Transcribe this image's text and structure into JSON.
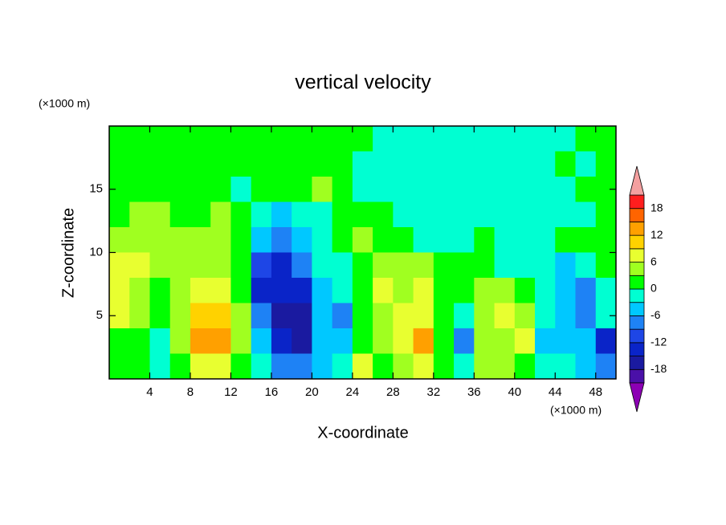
{
  "chart_data": {
    "type": "contour",
    "title": "vertical velocity",
    "xlabel": "X-coordinate",
    "ylabel": "Z-coordinate",
    "x_units": "(×1000 m)",
    "y_units": "(×1000 m)",
    "xlim": [
      0,
      50
    ],
    "ylim": [
      0,
      20
    ],
    "xticks": [
      4,
      8,
      12,
      16,
      20,
      24,
      28,
      32,
      36,
      40,
      44,
      48
    ],
    "yticks": [
      5,
      10,
      15
    ],
    "x": [
      1,
      3,
      5,
      7,
      9,
      11,
      13,
      15,
      17,
      19,
      21,
      23,
      25,
      27,
      29,
      31,
      33,
      35,
      37,
      39,
      41,
      43,
      45,
      47,
      49
    ],
    "z": [
      19,
      17,
      15,
      13,
      11,
      9,
      7,
      5,
      3,
      1
    ],
    "values": [
      [
        1,
        1,
        1,
        1,
        1,
        1,
        1,
        1,
        1,
        1,
        1,
        1,
        1,
        -1,
        -2,
        -1,
        -2,
        -2,
        -2,
        -1,
        -2,
        -1,
        -2,
        1,
        1
      ],
      [
        1,
        1,
        1,
        1,
        1,
        1,
        1,
        1,
        1,
        1,
        1,
        1,
        -1,
        -2,
        -1,
        -2,
        -2,
        -2,
        -2,
        -2,
        -2,
        -1,
        1,
        -1,
        1
      ],
      [
        1,
        1,
        2,
        1,
        1,
        1,
        -1,
        1,
        1,
        1,
        4,
        1,
        -1,
        -2,
        -1,
        -2,
        -2,
        -1,
        -2,
        -2,
        -2,
        -2,
        -1,
        1,
        1
      ],
      [
        2,
        3,
        3,
        2,
        2,
        4,
        2,
        -2,
        -4,
        -3,
        -2,
        1,
        2,
        2,
        -1,
        -2,
        -1,
        -2,
        -1,
        -2,
        -1,
        -2,
        -1,
        -1,
        1
      ],
      [
        5,
        4,
        4,
        4,
        3,
        3,
        2,
        -6,
        -9,
        -4,
        -2,
        2,
        3,
        2,
        1,
        -1,
        -2,
        -1,
        1,
        -1,
        -2,
        -1,
        1,
        1,
        1
      ],
      [
        7,
        7,
        5,
        4,
        4,
        3,
        1,
        -12,
        -13,
        -9,
        -3,
        -1,
        1,
        4,
        3,
        3,
        1,
        1,
        1,
        -1,
        -2,
        -2,
        -4,
        -2,
        1
      ],
      [
        7,
        5,
        2,
        5,
        8,
        6,
        1,
        -13,
        -14,
        -14,
        -5,
        -3,
        2,
        6,
        5,
        6,
        2,
        1,
        5,
        5,
        1,
        -3,
        -6,
        -8,
        -2
      ],
      [
        6,
        4,
        1,
        3,
        11,
        9,
        3,
        -9,
        -16,
        -17,
        -6,
        -9,
        1,
        5,
        8,
        8,
        0,
        -2,
        4,
        6,
        3,
        -3,
        -5,
        -8,
        -3
      ],
      [
        2,
        1,
        -1,
        3,
        14,
        12,
        4,
        -5,
        -14,
        -18,
        -5,
        -6,
        2,
        3,
        8,
        12,
        0,
        -8,
        5,
        5,
        8,
        -4,
        -4,
        -6,
        -14
      ],
      [
        1,
        1,
        -1,
        2,
        8,
        6,
        2,
        -2,
        -9,
        -9,
        -4,
        -3,
        6,
        2,
        3,
        6,
        1,
        -3,
        4,
        4,
        2,
        -3,
        -2,
        -4,
        -9
      ]
    ],
    "colorbar": {
      "levels": [
        -21,
        -18,
        -15,
        -12,
        -9,
        -6,
        -3,
        0,
        3,
        6,
        9,
        12,
        15,
        18,
        21
      ],
      "colors": [
        "#8c00b4",
        "#4a10a8",
        "#1a1aa0",
        "#0a24c8",
        "#1e46e6",
        "#1e82f5",
        "#00c8ff",
        "#00ffd2",
        "#00ff00",
        "#a0ff20",
        "#e8ff30",
        "#ffd200",
        "#ffa000",
        "#ff6400",
        "#ff1e1e",
        "#f4a0a0"
      ],
      "ticks": [
        -18,
        -12,
        -6,
        0,
        6,
        12,
        18
      ]
    }
  }
}
